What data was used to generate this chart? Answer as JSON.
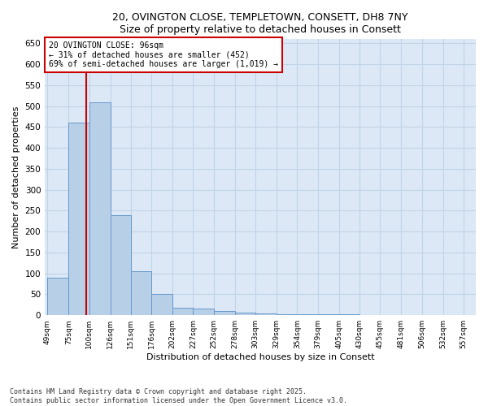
{
  "title_line1": "20, OVINGTON CLOSE, TEMPLETOWN, CONSETT, DH8 7NY",
  "title_line2": "Size of property relative to detached houses in Consett",
  "xlabel": "Distribution of detached houses by size in Consett",
  "ylabel": "Number of detached properties",
  "bin_edges": [
    49,
    75,
    100,
    126,
    151,
    176,
    202,
    227,
    252,
    278,
    303,
    329,
    354,
    379,
    405,
    430,
    455,
    481,
    506,
    532,
    557
  ],
  "bar_heights": [
    90,
    460,
    510,
    240,
    105,
    50,
    18,
    15,
    10,
    7,
    4,
    3,
    3,
    2,
    2,
    1,
    1,
    1,
    1,
    1
  ],
  "bar_color": "#b8cfe8",
  "bar_edge_color": "#6699cc",
  "property_size": 96,
  "vline_color": "#cc0000",
  "annotation_text": "20 OVINGTON CLOSE: 96sqm\n← 31% of detached houses are smaller (452)\n69% of semi-detached houses are larger (1,019) →",
  "annotation_box_color": "#ffffff",
  "annotation_box_edge_color": "#cc0000",
  "ylim": [
    0,
    660
  ],
  "yticks": [
    0,
    50,
    100,
    150,
    200,
    250,
    300,
    350,
    400,
    450,
    500,
    550,
    600,
    650
  ],
  "ax_bg_color": "#dce8f5",
  "background_color": "#ffffff",
  "grid_color": "#c0d4e8",
  "footer_line1": "Contains HM Land Registry data © Crown copyright and database right 2025.",
  "footer_line2": "Contains public sector information licensed under the Open Government Licence v3.0."
}
